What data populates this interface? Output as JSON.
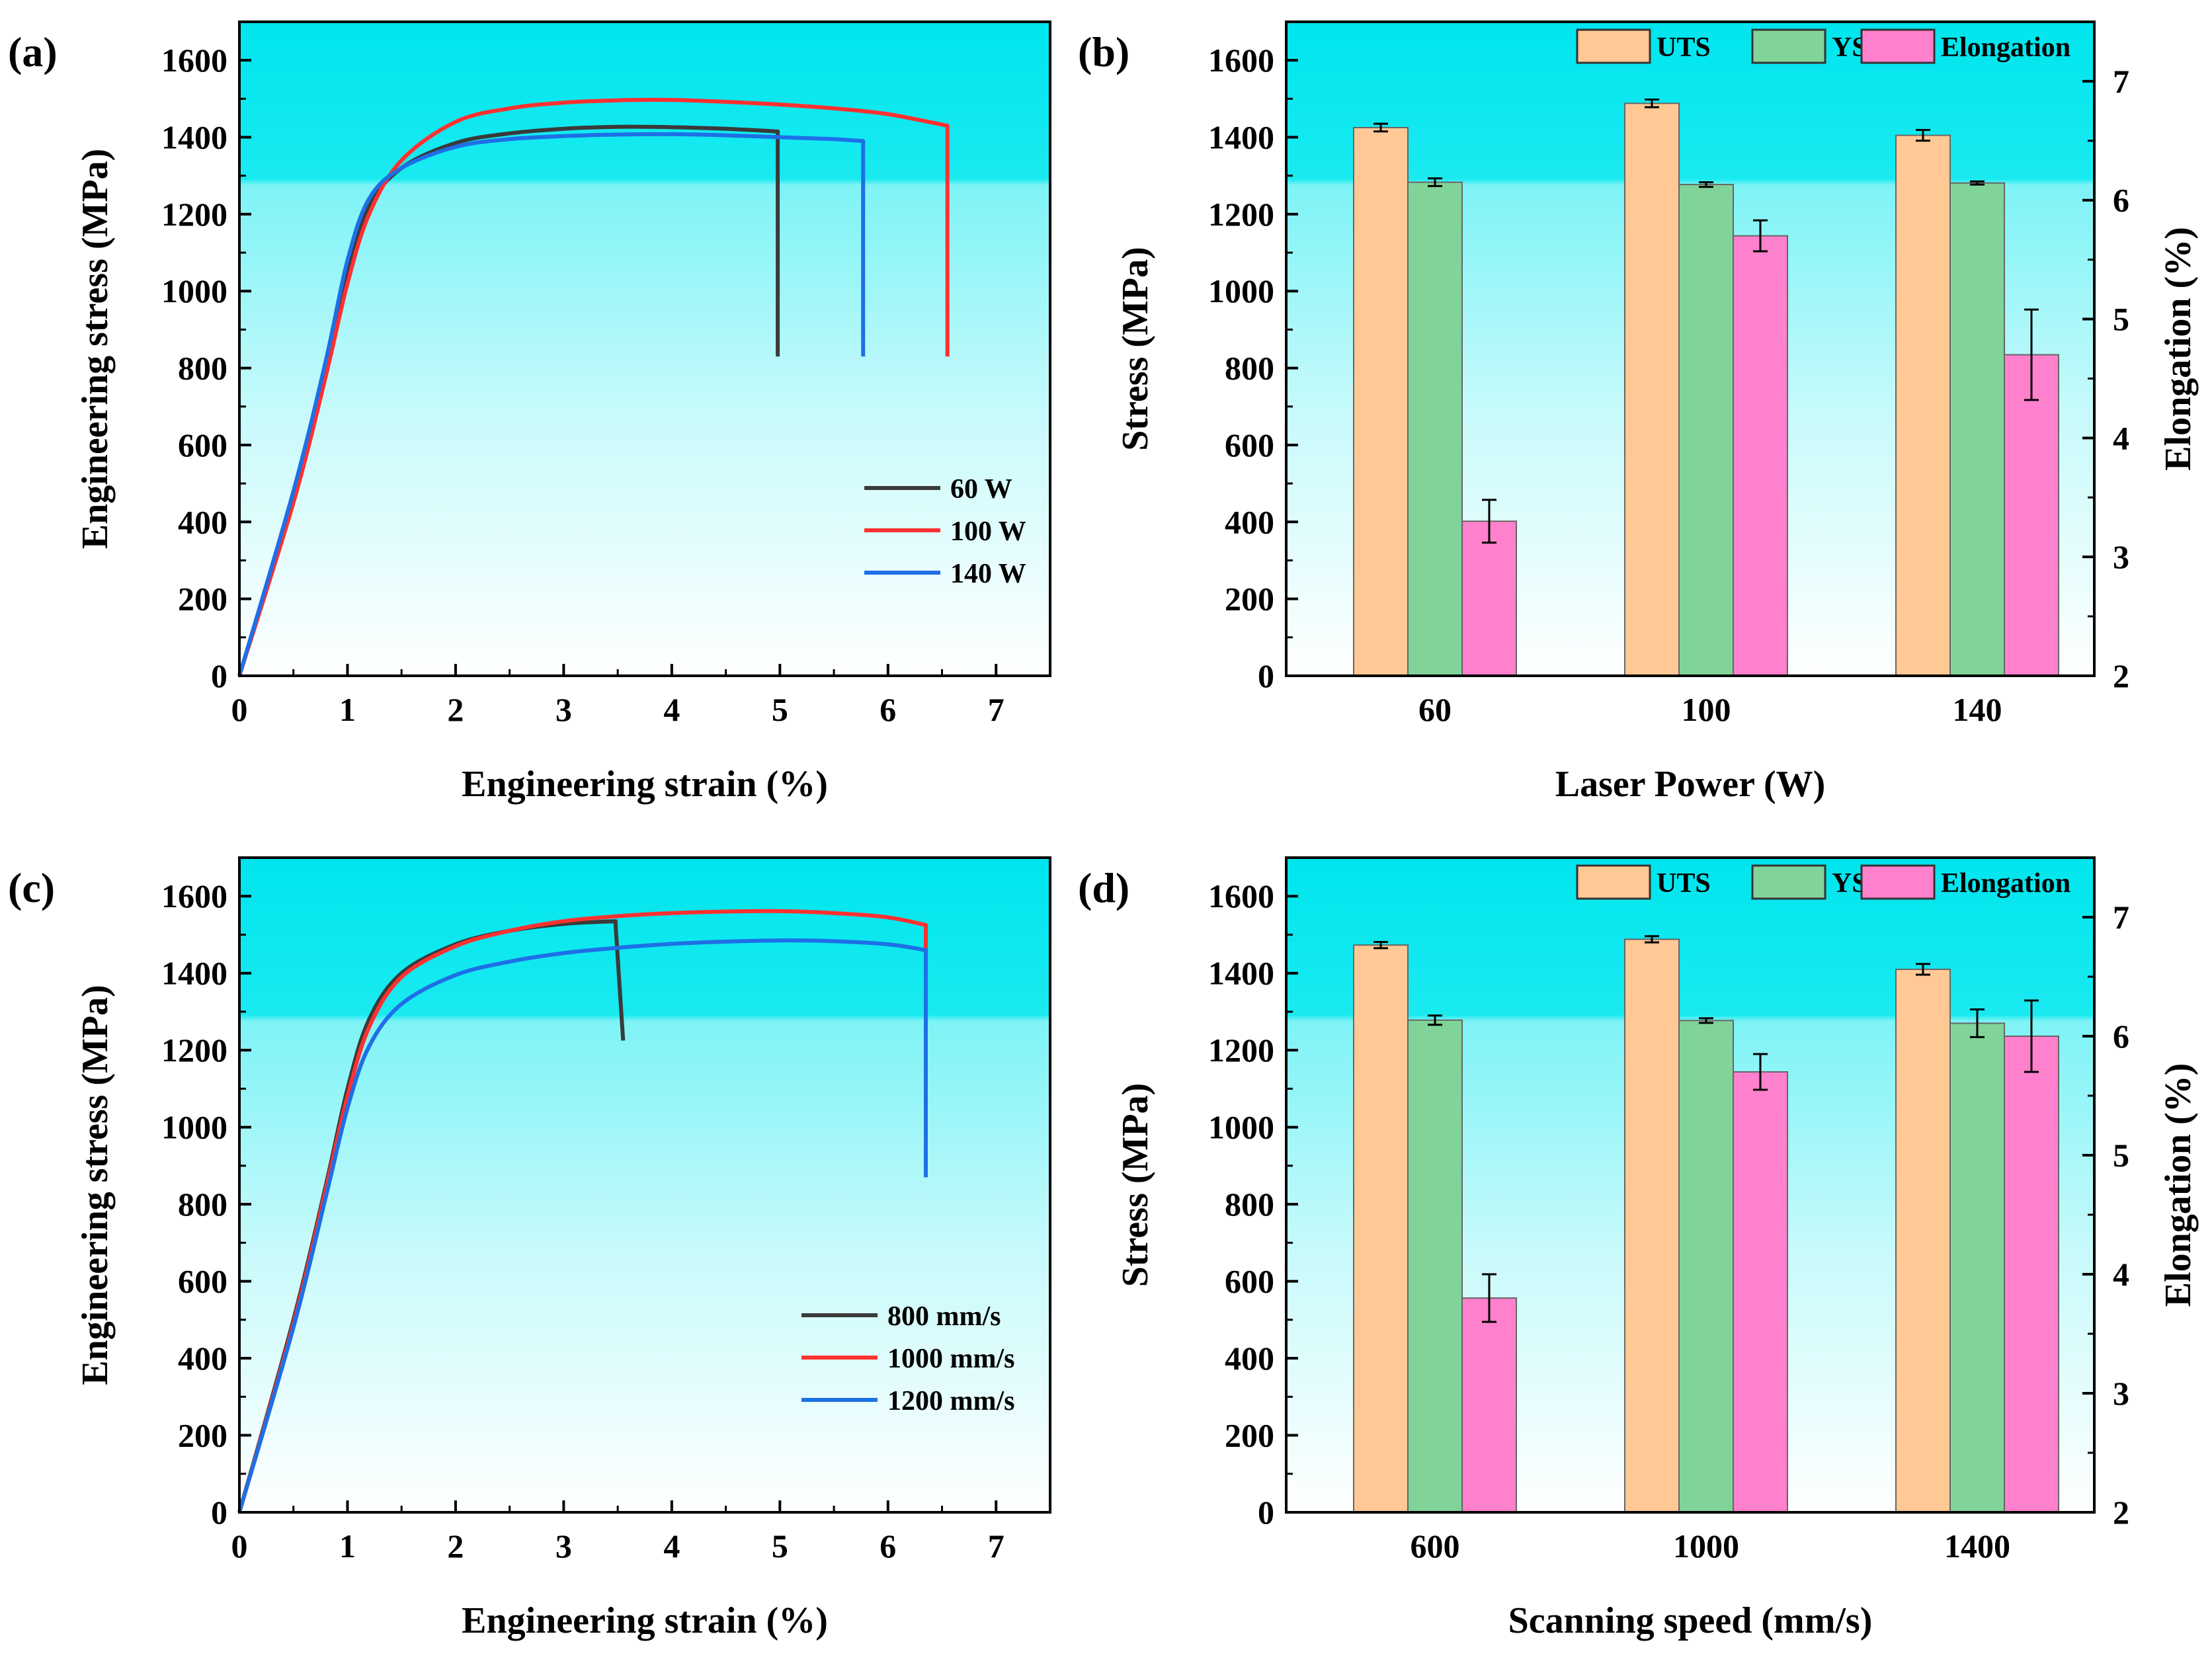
{
  "chart_data": [
    {
      "id": "a",
      "type": "line",
      "panel_label": "(a)",
      "xlabel": "Engineering strain (%)",
      "ylabel": "Engineering stress (MPa)",
      "xlim": [
        0,
        7.5
      ],
      "ylim": [
        0,
        1700
      ],
      "xticks": [
        0,
        1,
        2,
        3,
        4,
        5,
        6,
        7
      ],
      "yticks": [
        0,
        200,
        400,
        600,
        800,
        1000,
        1200,
        1400,
        1600
      ],
      "legend_position": "center-right",
      "series": [
        {
          "name": "60 W",
          "color": "#3a3a3a",
          "points": [
            [
              0,
              0
            ],
            [
              0.5,
              470
            ],
            [
              0.8,
              800
            ],
            [
              1.0,
              1050
            ],
            [
              1.2,
              1220
            ],
            [
              1.5,
              1320
            ],
            [
              2.0,
              1385
            ],
            [
              2.5,
              1410
            ],
            [
              3.0,
              1422
            ],
            [
              3.5,
              1427
            ],
            [
              4.0,
              1426
            ],
            [
              4.5,
              1422
            ],
            [
              4.98,
              1415
            ],
            [
              4.98,
              830
            ]
          ]
        },
        {
          "name": "100 W",
          "color": "#ff3030",
          "points": [
            [
              0,
              0
            ],
            [
              0.5,
              450
            ],
            [
              0.8,
              780
            ],
            [
              1.0,
              1020
            ],
            [
              1.2,
              1200
            ],
            [
              1.5,
              1340
            ],
            [
              2.0,
              1440
            ],
            [
              2.5,
              1475
            ],
            [
              3.0,
              1490
            ],
            [
              3.5,
              1496
            ],
            [
              4.0,
              1497
            ],
            [
              4.5,
              1492
            ],
            [
              5.0,
              1485
            ],
            [
              5.5,
              1475
            ],
            [
              6.0,
              1460
            ],
            [
              6.55,
              1430
            ],
            [
              6.55,
              830
            ]
          ]
        },
        {
          "name": "140 W",
          "color": "#1e6fe6",
          "points": [
            [
              0,
              0
            ],
            [
              0.5,
              480
            ],
            [
              0.8,
              820
            ],
            [
              1.0,
              1080
            ],
            [
              1.2,
              1240
            ],
            [
              1.5,
              1320
            ],
            [
              2.0,
              1375
            ],
            [
              2.5,
              1395
            ],
            [
              3.0,
              1403
            ],
            [
              3.5,
              1407
            ],
            [
              4.0,
              1408
            ],
            [
              4.5,
              1405
            ],
            [
              5.0,
              1400
            ],
            [
              5.5,
              1395
            ],
            [
              5.77,
              1390
            ],
            [
              5.77,
              830
            ]
          ]
        }
      ]
    },
    {
      "id": "b",
      "type": "bar",
      "panel_label": "(b)",
      "xlabel": "Laser Power (W)",
      "ylabel": "Stress (MPa)",
      "y2label": "Elongation (%)",
      "categories": [
        "60",
        "100",
        "140"
      ],
      "ylim": [
        0,
        1700
      ],
      "y2lim": [
        2,
        7.5
      ],
      "yticks": [
        0,
        200,
        400,
        600,
        800,
        1000,
        1200,
        1400,
        1600
      ],
      "y2ticks": [
        2,
        3,
        4,
        5,
        6,
        7
      ],
      "legend_position": "top",
      "series": [
        {
          "name": "UTS",
          "axis": "left",
          "color": "#ffc894",
          "values": [
            1425,
            1488,
            1405
          ],
          "errors": [
            10,
            10,
            14
          ]
        },
        {
          "name": "YS",
          "axis": "left",
          "color": "#80d49a",
          "values": [
            1283,
            1277,
            1281
          ],
          "errors": [
            10,
            6,
            4
          ]
        },
        {
          "name": "Elongation",
          "axis": "right",
          "color": "#ff80cc",
          "values": [
            3.3,
            5.7,
            4.7
          ],
          "errors": [
            0.18,
            0.13,
            0.38
          ]
        }
      ]
    },
    {
      "id": "c",
      "type": "line",
      "panel_label": "(c)",
      "xlabel": "Engineering strain (%)",
      "ylabel": "Engineering stress (MPa)",
      "xlim": [
        0,
        7.5
      ],
      "ylim": [
        0,
        1700
      ],
      "xticks": [
        0,
        1,
        2,
        3,
        4,
        5,
        6,
        7
      ],
      "yticks": [
        0,
        200,
        400,
        600,
        800,
        1000,
        1200,
        1400,
        1600
      ],
      "legend_position": "bottom-right",
      "series": [
        {
          "name": "800 mm/s",
          "color": "#3a3a3a",
          "points": [
            [
              0,
              0
            ],
            [
              0.5,
              500
            ],
            [
              0.8,
              850
            ],
            [
              1.0,
              1100
            ],
            [
              1.2,
              1280
            ],
            [
              1.5,
              1400
            ],
            [
              2.0,
              1475
            ],
            [
              2.5,
              1510
            ],
            [
              3.0,
              1528
            ],
            [
              3.48,
              1535
            ],
            [
              3.48,
              1525
            ],
            [
              3.55,
              1225
            ]
          ]
        },
        {
          "name": "1000 mm/s",
          "color": "#ff3030",
          "points": [
            [
              0,
              0
            ],
            [
              0.5,
              490
            ],
            [
              0.8,
              840
            ],
            [
              1.0,
              1080
            ],
            [
              1.2,
              1260
            ],
            [
              1.5,
              1390
            ],
            [
              2.0,
              1470
            ],
            [
              2.5,
              1510
            ],
            [
              3.0,
              1535
            ],
            [
              3.5,
              1548
            ],
            [
              4.0,
              1556
            ],
            [
              4.5,
              1560
            ],
            [
              5.0,
              1561
            ],
            [
              5.5,
              1556
            ],
            [
              6.0,
              1545
            ],
            [
              6.35,
              1525
            ],
            [
              6.35,
              880
            ]
          ]
        },
        {
          "name": "1200 mm/s",
          "color": "#1e6fe6",
          "points": [
            [
              0,
              0
            ],
            [
              0.5,
              480
            ],
            [
              0.8,
              820
            ],
            [
              1.0,
              1050
            ],
            [
              1.2,
              1210
            ],
            [
              1.5,
              1320
            ],
            [
              2.0,
              1395
            ],
            [
              2.5,
              1430
            ],
            [
              3.0,
              1452
            ],
            [
              3.5,
              1466
            ],
            [
              4.0,
              1476
            ],
            [
              4.5,
              1482
            ],
            [
              5.0,
              1485
            ],
            [
              5.5,
              1483
            ],
            [
              6.0,
              1475
            ],
            [
              6.35,
              1460
            ],
            [
              6.35,
              870
            ]
          ]
        }
      ]
    },
    {
      "id": "d",
      "type": "bar",
      "panel_label": "(d)",
      "xlabel": "Scanning speed (mm/s)",
      "ylabel": "Stress (MPa)",
      "y2label": "Elongation (%)",
      "categories": [
        "600",
        "1000",
        "1400"
      ],
      "ylim": [
        0,
        1700
      ],
      "y2lim": [
        2,
        7.5
      ],
      "yticks": [
        0,
        200,
        400,
        600,
        800,
        1000,
        1200,
        1400,
        1600
      ],
      "y2ticks": [
        2,
        3,
        4,
        5,
        6,
        7
      ],
      "legend_position": "top",
      "series": [
        {
          "name": "UTS",
          "axis": "left",
          "color": "#ffc894",
          "values": [
            1473,
            1488,
            1410
          ],
          "errors": [
            8,
            8,
            14
          ]
        },
        {
          "name": "YS",
          "axis": "left",
          "color": "#80d49a",
          "values": [
            1278,
            1277,
            1270
          ],
          "errors": [
            12,
            6,
            36
          ]
        },
        {
          "name": "Elongation",
          "axis": "right",
          "color": "#ff80cc",
          "values": [
            3.8,
            5.7,
            6.0
          ],
          "errors": [
            0.2,
            0.15,
            0.3
          ]
        }
      ]
    }
  ]
}
